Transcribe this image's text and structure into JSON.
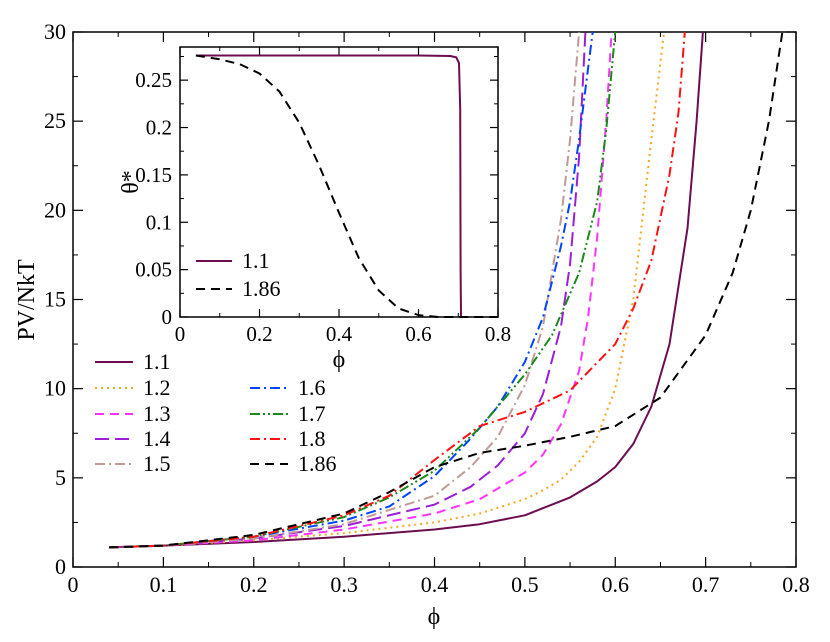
{
  "chart_data": [
    {
      "type": "line",
      "xlabel": "ϕ",
      "ylabel": "PV/NkT",
      "xlim": [
        0,
        0.8
      ],
      "ylim": [
        0,
        30
      ],
      "x_ticks": [
        "0",
        "0.1",
        "0.2",
        "0.3",
        "0.4",
        "0.5",
        "0.6",
        "0.7",
        "0.8"
      ],
      "y_ticks": [
        "0",
        "5",
        "10",
        "15",
        "20",
        "25",
        "30"
      ],
      "legend_placement": "middle-left",
      "series": [
        {
          "name": "1.1",
          "color": "#6b0d4f",
          "dash": "solid",
          "x": [
            0.04,
            0.1,
            0.2,
            0.3,
            0.4,
            0.45,
            0.5,
            0.55,
            0.58,
            0.6,
            0.62,
            0.64,
            0.66,
            0.68,
            0.69,
            0.697
          ],
          "y": [
            1.1,
            1.2,
            1.4,
            1.7,
            2.1,
            2.4,
            2.9,
            3.9,
            4.8,
            5.6,
            6.9,
            9.0,
            12.5,
            19.0,
            25.0,
            30
          ]
        },
        {
          "name": "1.2",
          "color": "#f5a623",
          "dash": "dot",
          "x": [
            0.04,
            0.1,
            0.2,
            0.3,
            0.4,
            0.45,
            0.5,
            0.52,
            0.54,
            0.56,
            0.58,
            0.6,
            0.62,
            0.64,
            0.654
          ],
          "y": [
            1.1,
            1.2,
            1.5,
            1.9,
            2.5,
            3.0,
            3.8,
            4.3,
            4.9,
            5.9,
            7.3,
            10.0,
            15.0,
            24.0,
            30
          ]
        },
        {
          "name": "1.3",
          "color": "#ff33ff",
          "dash": "dash",
          "x": [
            0.04,
            0.1,
            0.2,
            0.3,
            0.4,
            0.45,
            0.5,
            0.52,
            0.54,
            0.56,
            0.57,
            0.58,
            0.59,
            0.596
          ],
          "y": [
            1.1,
            1.2,
            1.5,
            2.1,
            3.0,
            3.8,
            5.3,
            6.3,
            8.0,
            11.0,
            14.0,
            18.5,
            25.0,
            30
          ]
        },
        {
          "name": "1.4",
          "color": "#9a1fd6",
          "dash": "longdash",
          "x": [
            0.04,
            0.1,
            0.2,
            0.3,
            0.4,
            0.44,
            0.47,
            0.5,
            0.52,
            0.54,
            0.55,
            0.56,
            0.567
          ],
          "y": [
            1.1,
            1.2,
            1.6,
            2.3,
            3.5,
            4.5,
            5.7,
            7.5,
            9.7,
            13.5,
            17.0,
            23.0,
            30
          ]
        },
        {
          "name": "1.5",
          "color": "#c09a94",
          "dash": "dashdot",
          "x": [
            0.04,
            0.1,
            0.2,
            0.3,
            0.4,
            0.44,
            0.47,
            0.5,
            0.52,
            0.54,
            0.55,
            0.56
          ],
          "y": [
            1.1,
            1.2,
            1.6,
            2.4,
            4.0,
            5.6,
            7.3,
            10.2,
            13.5,
            19.5,
            24.0,
            30
          ]
        },
        {
          "name": "1.6",
          "color": "#0044ff",
          "dash": "dashdot",
          "x": [
            0.04,
            0.1,
            0.2,
            0.3,
            0.35,
            0.4,
            0.44,
            0.47,
            0.5,
            0.52,
            0.54,
            0.55,
            0.56,
            0.575
          ],
          "y": [
            1.1,
            1.2,
            1.7,
            2.6,
            3.4,
            5.1,
            7.2,
            9.0,
            11.5,
            14.0,
            18.0,
            20.5,
            24.0,
            30
          ]
        },
        {
          "name": "1.7",
          "color": "#1b8a1b",
          "dash": "dashdotdot",
          "x": [
            0.04,
            0.1,
            0.2,
            0.3,
            0.35,
            0.4,
            0.45,
            0.5,
            0.53,
            0.56,
            0.58,
            0.59,
            0.6
          ],
          "y": [
            1.1,
            1.2,
            1.7,
            2.8,
            3.9,
            5.4,
            7.8,
            10.8,
            13.0,
            16.5,
            20.5,
            24.5,
            30
          ]
        },
        {
          "name": "1.8",
          "color": "#ff1111",
          "dash": "dashdot",
          "x": [
            0.04,
            0.1,
            0.2,
            0.3,
            0.35,
            0.4,
            0.45,
            0.5,
            0.55,
            0.6,
            0.62,
            0.64,
            0.66,
            0.67,
            0.677
          ],
          "y": [
            1.1,
            1.2,
            1.7,
            2.9,
            4.0,
            6.0,
            7.9,
            8.7,
            9.9,
            12.5,
            14.5,
            17.2,
            22.0,
            25.5,
            30
          ]
        },
        {
          "name": "1.86",
          "color": "#000000",
          "dash": "dash",
          "x": [
            0.04,
            0.1,
            0.2,
            0.3,
            0.35,
            0.4,
            0.45,
            0.5,
            0.55,
            0.6,
            0.65,
            0.7,
            0.73,
            0.75,
            0.77,
            0.785
          ],
          "y": [
            1.1,
            1.2,
            1.8,
            3.0,
            4.2,
            5.6,
            6.4,
            6.8,
            7.3,
            7.9,
            9.5,
            13.0,
            16.5,
            20.0,
            25.0,
            30
          ]
        }
      ]
    },
    {
      "type": "line",
      "xlabel": "ϕ",
      "ylabel": "θ*",
      "xlim": [
        0,
        0.8
      ],
      "ylim": [
        0,
        0.285
      ],
      "x_ticks": [
        "0",
        "0.2",
        "0.4",
        "0.6",
        "0.8"
      ],
      "y_ticks": [
        "0",
        "0.05",
        "0.1",
        "0.15",
        "0.2",
        "0.25"
      ],
      "legend_placement": "bottom-left",
      "series": [
        {
          "name": "1.1",
          "color": "#6b0d4f",
          "dash": "solid",
          "x": [
            0.04,
            0.3,
            0.6,
            0.68,
            0.695,
            0.702,
            0.705,
            0.706,
            0.707
          ],
          "y": [
            0.276,
            0.276,
            0.276,
            0.2755,
            0.274,
            0.268,
            0.22,
            0.05,
            0.0
          ]
        },
        {
          "name": "1.86",
          "color": "#000000",
          "dash": "dash",
          "x": [
            0.04,
            0.1,
            0.15,
            0.2,
            0.25,
            0.3,
            0.35,
            0.4,
            0.45,
            0.5,
            0.55,
            0.6,
            0.65,
            0.7,
            0.8
          ],
          "y": [
            0.276,
            0.272,
            0.267,
            0.257,
            0.238,
            0.205,
            0.16,
            0.11,
            0.062,
            0.028,
            0.009,
            0.002,
            0.0,
            0.0,
            0.0
          ]
        }
      ]
    }
  ]
}
